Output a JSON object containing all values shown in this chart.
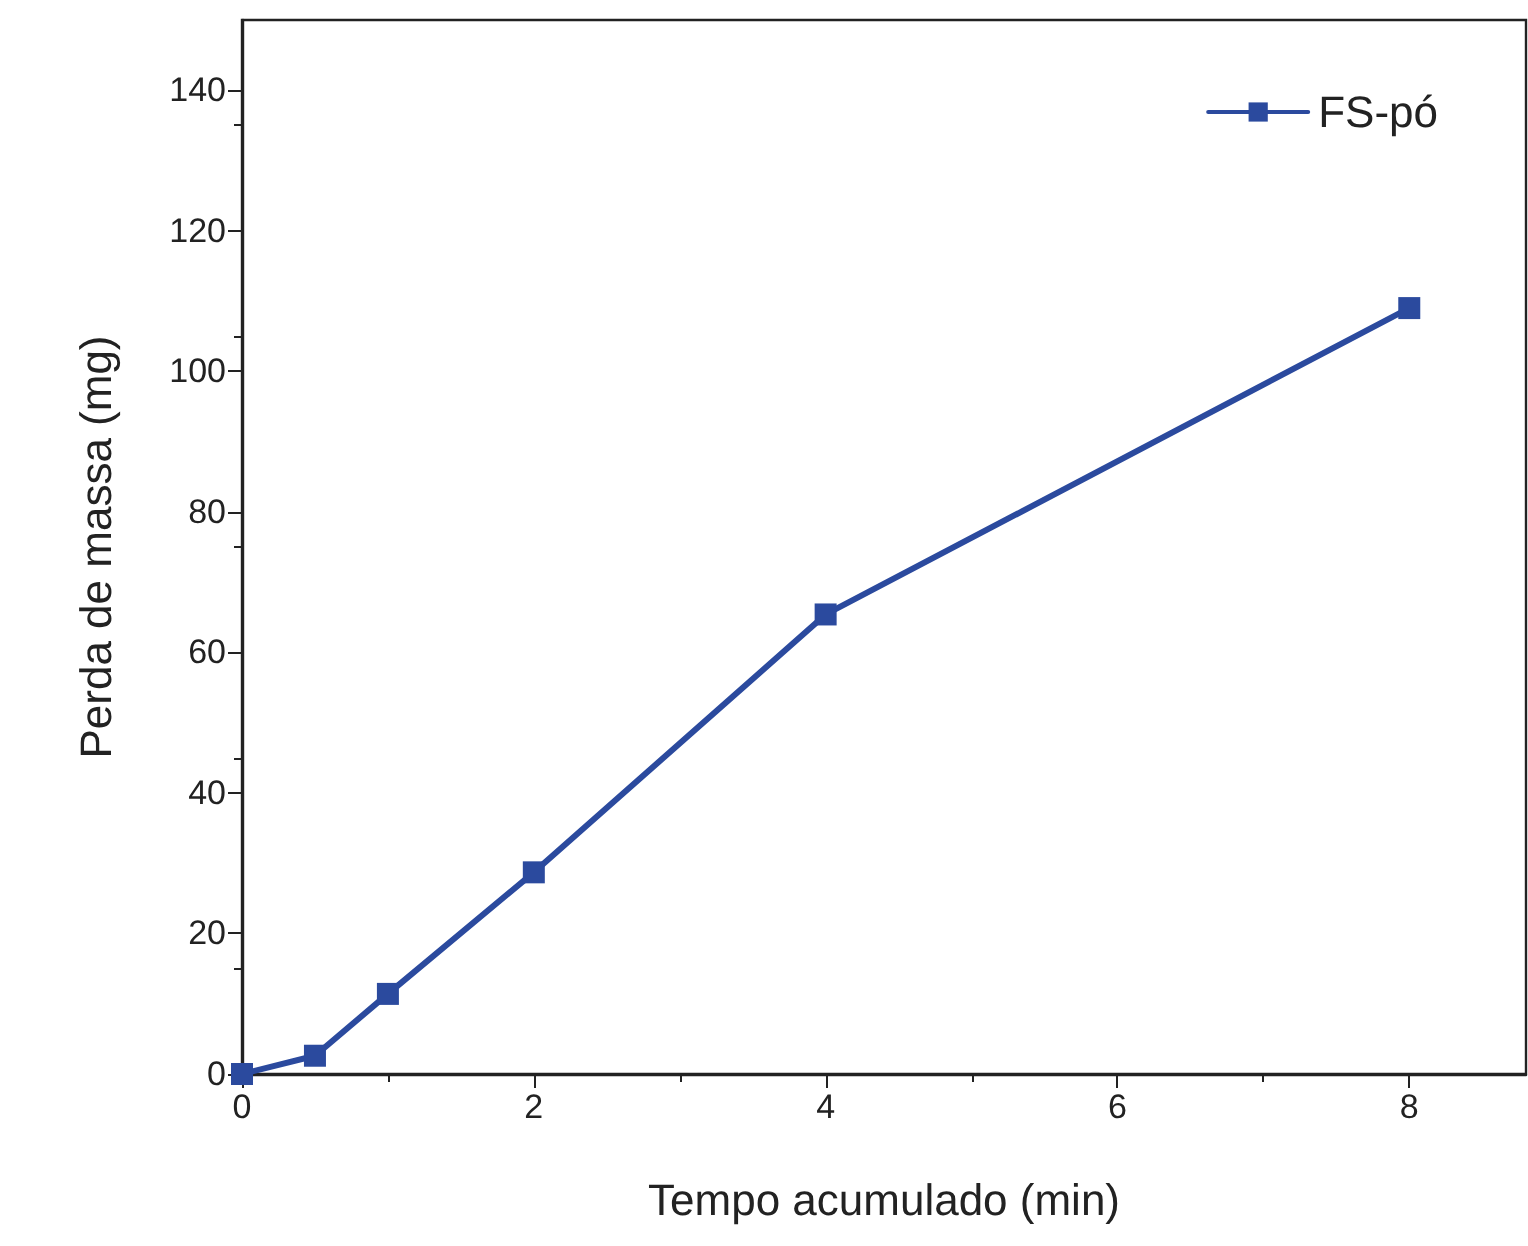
{
  "chart_data": {
    "type": "line",
    "xlabel": "Tempo acumulado (min)",
    "ylabel": "Perda de massa (mg)",
    "xlim": [
      0,
      8.8
    ],
    "xticks": [
      0,
      2,
      4,
      6,
      8
    ],
    "ylim": [
      0,
      150
    ],
    "yticks": [
      0,
      20,
      40,
      60,
      80,
      100,
      120,
      140
    ],
    "grid": false,
    "legend": "top right",
    "marker": "square",
    "line_style": "solid",
    "series": [
      {
        "name": "FS-pó",
        "color": "#2b4a9e",
        "x": [
          0,
          0.5,
          1,
          2,
          4,
          8
        ],
        "values": [
          0,
          2.6,
          11.4,
          28.7,
          65.4,
          109
        ]
      }
    ]
  }
}
